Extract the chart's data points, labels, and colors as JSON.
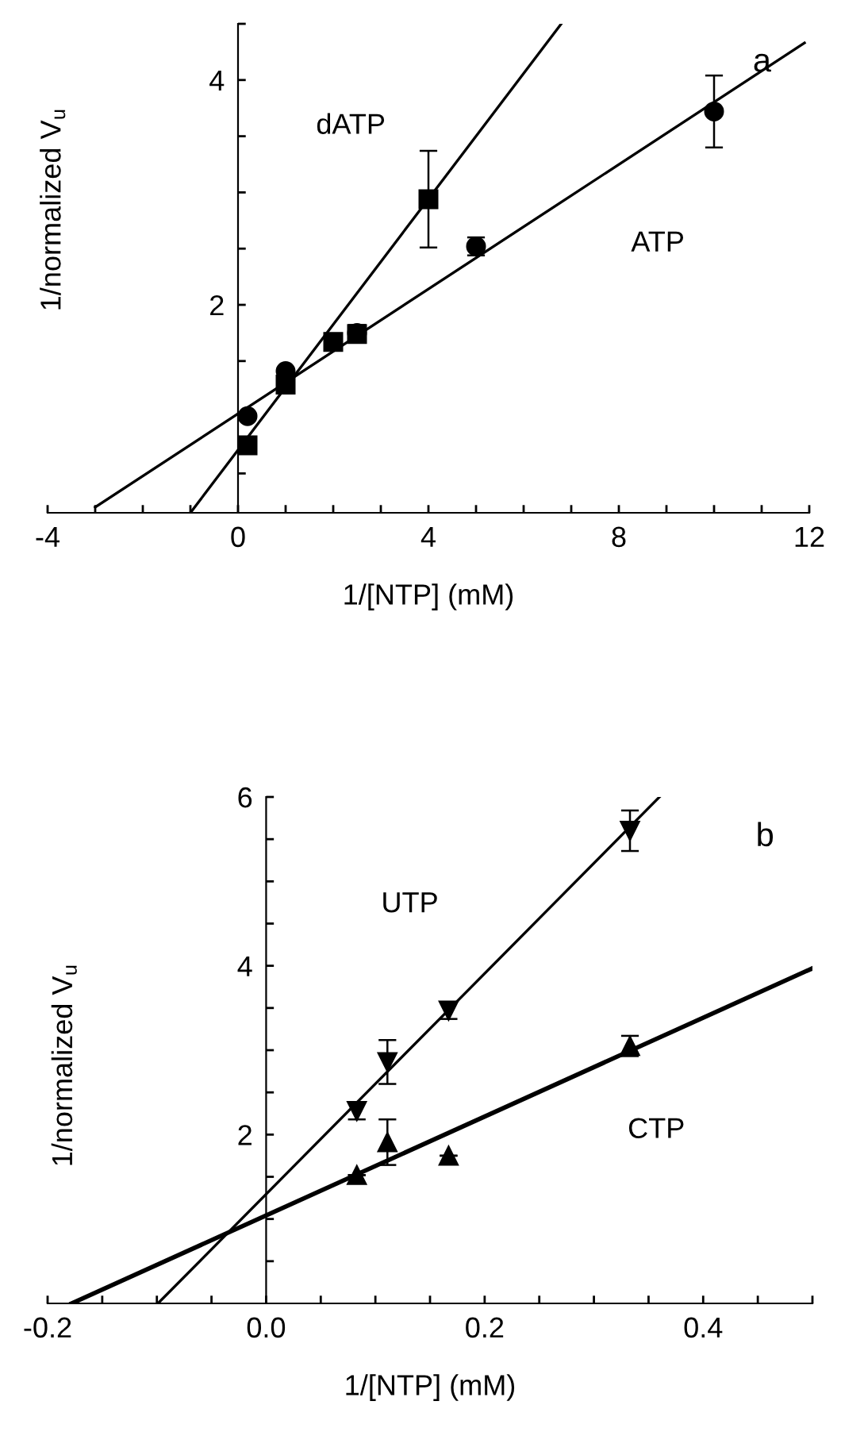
{
  "chart_data": [
    {
      "type": "scatter",
      "xlabel": "1/[NTP] (mM)",
      "ylabel": "1/normalized V$_{u}$",
      "annotations": [
        "a"
      ],
      "xlim": [
        -4,
        12
      ],
      "ylim": [
        0.15,
        4.5
      ],
      "xticks": [
        -4,
        {
          "value": -3,
          "label": null
        },
        {
          "value": -2,
          "label": null
        },
        {
          "value": -1,
          "label": null
        },
        0,
        {
          "value": 1,
          "label": null
        },
        {
          "value": 2,
          "label": null
        },
        {
          "value": 3,
          "label": null
        },
        4,
        {
          "value": 5,
          "label": null
        },
        {
          "value": 6,
          "label": null
        },
        {
          "value": 7,
          "label": null
        },
        8,
        {
          "value": 9,
          "label": null
        },
        {
          "value": 10,
          "label": null
        },
        {
          "value": 11,
          "label": null
        },
        12
      ],
      "yticks": [
        {
          "value": 0.5,
          "label": null
        },
        {
          "value": 1,
          "label": null
        },
        {
          "value": 1.5,
          "label": null
        },
        2,
        {
          "value": 2.5,
          "label": null
        },
        {
          "value": 3,
          "label": null
        },
        {
          "value": 3.5,
          "label": null
        },
        4,
        {
          "value": 4.5,
          "label": null
        }
      ],
      "grid": false,
      "legend": false,
      "series": [
        {
          "type": "line",
          "name": "dATP",
          "color": "#000000",
          "x": [
            -1.0,
            6.79
          ],
          "values": [
            0.15,
            4.5
          ]
        },
        {
          "type": "line",
          "name": "ATP",
          "color": "#000000",
          "x": [
            -3.0,
            11.9
          ],
          "values": [
            0.2,
            4.33
          ]
        },
        {
          "marker": "square",
          "color": "#000000",
          "x": [
            0.2,
            1,
            2,
            2.5,
            4
          ],
          "values": [
            0.75,
            1.29,
            1.67,
            1.74,
            2.94
          ],
          "errors": [
            null,
            0.06,
            null,
            0.06,
            0.43
          ]
        },
        {
          "marker": "circle",
          "color": "#000000",
          "x": [
            0.2,
            1,
            2.5,
            5,
            10
          ],
          "values": [
            1.01,
            1.41,
            1.75,
            2.52,
            3.72
          ],
          "errors": [
            null,
            null,
            0.07,
            0.08,
            0.32
          ]
        }
      ]
    },
    {
      "type": "scatter",
      "xlabel": "1/[NTP] (mM)",
      "ylabel": "1/normalized V$_{u}$",
      "annotations": [
        "b"
      ],
      "xlim": [
        -0.2,
        0.5
      ],
      "ylim": [
        0,
        6
      ],
      "xticks": [
        -0.2,
        {
          "value": -0.15,
          "label": null
        },
        {
          "value": -0.1,
          "label": null
        },
        {
          "value": -0.05,
          "label": null
        },
        {
          "value": 0,
          "label": "0.0"
        },
        {
          "value": 0.05,
          "label": null
        },
        {
          "value": 0.1,
          "label": null
        },
        {
          "value": 0.15,
          "label": null
        },
        0.2,
        {
          "value": 0.25,
          "label": null
        },
        {
          "value": 0.3,
          "label": null
        },
        {
          "value": 0.35,
          "label": null
        },
        0.4,
        {
          "value": 0.45,
          "label": null
        },
        {
          "value": 0.5,
          "label": null
        }
      ],
      "yticks": [
        {
          "value": 0.5,
          "label": null
        },
        {
          "value": 1,
          "label": null
        },
        {
          "value": 1.5,
          "label": null
        },
        2,
        {
          "value": 2.5,
          "label": null
        },
        {
          "value": 3,
          "label": null
        },
        {
          "value": 3.5,
          "label": null
        },
        4,
        {
          "value": 4.5,
          "label": null
        },
        {
          "value": 5,
          "label": null
        },
        {
          "value": 5.5,
          "label": null
        },
        6
      ],
      "grid": false,
      "legend": false,
      "series": [
        {
          "type": "line",
          "name": "UTP",
          "color": "#000000",
          "x": [
            -0.099,
            0.36
          ],
          "values": [
            0,
            6.0
          ]
        },
        {
          "type": "line",
          "name": "CTP",
          "color": "#000000",
          "x": [
            -0.178,
            0.5
          ],
          "values": [
            0,
            3.97
          ]
        },
        {
          "marker": "triangle-down",
          "color": "#000000",
          "x": [
            0.083,
            0.111,
            0.167,
            0.333
          ],
          "values": [
            2.28,
            2.86,
            3.47,
            5.6
          ],
          "errors": [
            0.1,
            0.26,
            0.1,
            0.24
          ]
        },
        {
          "marker": "triangle",
          "color": "#000000",
          "x": [
            0.083,
            0.111,
            0.167,
            0.333
          ],
          "values": [
            1.52,
            1.91,
            1.75,
            3.05
          ],
          "errors": [
            null,
            0.27,
            null,
            0.12
          ]
        }
      ]
    }
  ]
}
